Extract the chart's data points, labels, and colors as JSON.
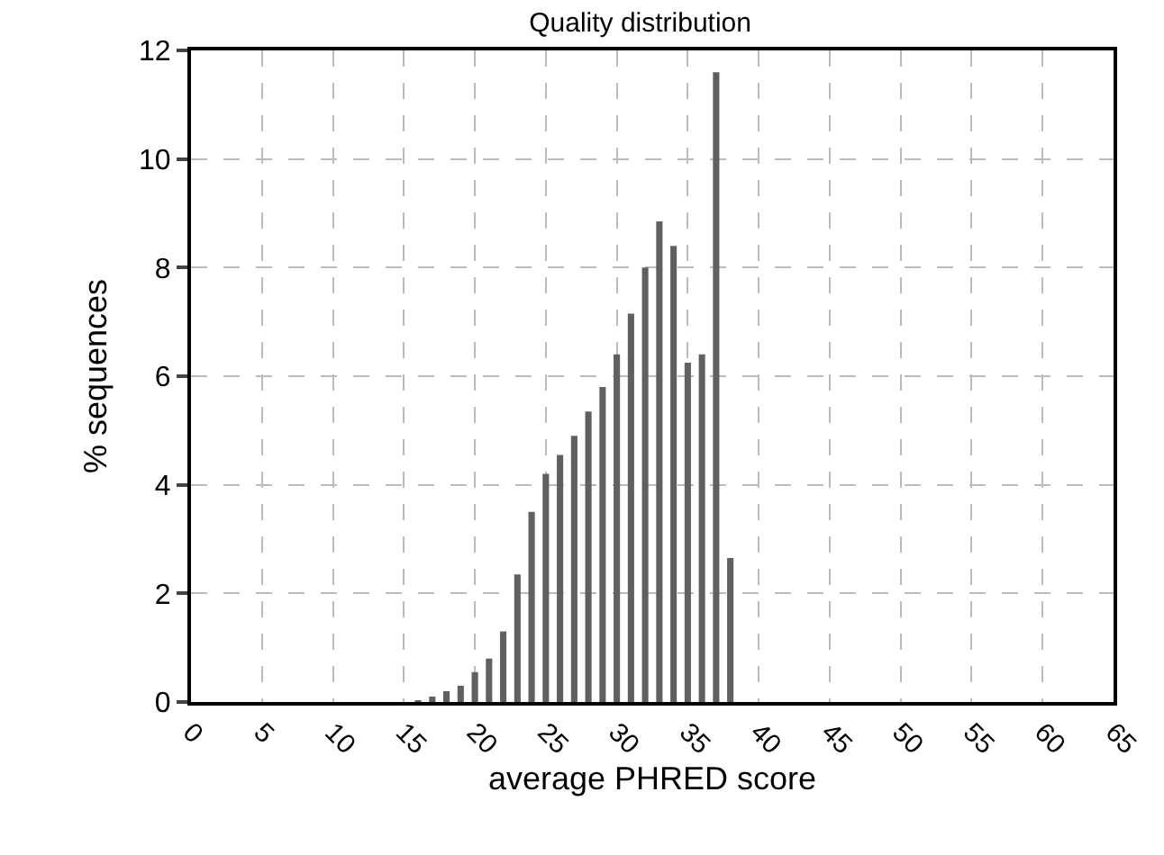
{
  "chart_data": {
    "type": "bar",
    "title": "Quality distribution",
    "xlabel": "average PHRED score",
    "ylabel": "% sequences",
    "x": [
      16,
      17,
      18,
      19,
      20,
      21,
      22,
      23,
      24,
      25,
      26,
      27,
      28,
      29,
      30,
      31,
      32,
      33,
      34,
      35,
      36,
      37,
      38
    ],
    "values": [
      0.03,
      0.1,
      0.2,
      0.3,
      0.55,
      0.8,
      1.3,
      2.35,
      3.5,
      4.2,
      4.55,
      4.9,
      5.35,
      5.8,
      6.4,
      7.15,
      8.0,
      8.85,
      8.4,
      6.25,
      6.4,
      11.6,
      2.65
    ],
    "color": "#606060",
    "xlim": [
      0,
      65
    ],
    "xticks": [
      0,
      5,
      10,
      15,
      20,
      25,
      30,
      35,
      40,
      45,
      50,
      55,
      60,
      65
    ],
    "ylim": [
      0,
      12
    ],
    "yticks": [
      0,
      2,
      4,
      6,
      8,
      10,
      12
    ],
    "grid": true
  }
}
